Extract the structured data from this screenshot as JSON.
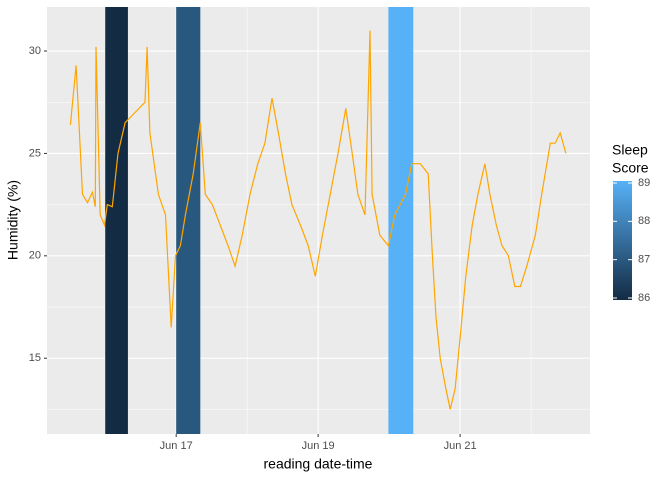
{
  "chart_data": {
    "type": "line",
    "x_label": "reading date-time",
    "y_label": "Humidity (%)",
    "xlim": [
      15.18,
      22.83
    ],
    "ylim": [
      11.3,
      32.15
    ],
    "xticks": [
      {
        "value": 17,
        "label": "Jun 17"
      },
      {
        "value": 19,
        "label": "Jun 19"
      },
      {
        "value": 21,
        "label": "Jun 21"
      }
    ],
    "x_minor_ticks": [
      16,
      18,
      20,
      22
    ],
    "yticks": [
      15,
      20,
      25,
      30
    ],
    "y_minor_ticks": [
      12.5,
      17.5,
      22.5,
      27.5
    ],
    "grid": true,
    "line": {
      "color": "#ffa500",
      "x": [
        15.51,
        15.59,
        15.68,
        15.75,
        15.82,
        15.86,
        15.87,
        15.93,
        15.99,
        16.03,
        16.1,
        16.18,
        16.28,
        16.42,
        16.56,
        16.59,
        16.63,
        16.75,
        16.85,
        16.93,
        16.99,
        17.06,
        17.13,
        17.24,
        17.34,
        17.41,
        17.51,
        17.62,
        17.73,
        17.83,
        17.93,
        18.04,
        18.15,
        18.25,
        18.35,
        18.44,
        18.54,
        18.63,
        18.75,
        18.86,
        18.96,
        19.06,
        19.17,
        19.28,
        19.39,
        19.48,
        19.56,
        19.66,
        19.73,
        19.76,
        19.87,
        19.99,
        20.08,
        20.23,
        20.32,
        20.44,
        20.55,
        20.61,
        20.66,
        20.72,
        20.8,
        20.86,
        20.93,
        21.0,
        21.08,
        21.17,
        21.25,
        21.35,
        21.42,
        21.51,
        21.59,
        21.68,
        21.77,
        21.85,
        21.94,
        22.06,
        22.15,
        22.27,
        22.34,
        22.41,
        22.49
      ],
      "values": [
        26.4,
        29.3,
        23.0,
        22.6,
        23.1,
        22.4,
        30.2,
        22.0,
        21.5,
        22.5,
        22.4,
        25.0,
        26.5,
        27.0,
        27.5,
        30.2,
        26.0,
        23.0,
        22.0,
        16.5,
        20.0,
        20.5,
        22.0,
        24.0,
        26.5,
        23.0,
        22.5,
        21.5,
        20.5,
        19.5,
        21.0,
        23.0,
        24.5,
        25.5,
        27.7,
        26.0,
        24.0,
        22.5,
        21.5,
        20.5,
        19.0,
        21.0,
        23.0,
        25.0,
        27.2,
        25.0,
        23.0,
        22.0,
        31.0,
        23.0,
        21.0,
        20.5,
        22.0,
        23.0,
        24.5,
        24.5,
        24.0,
        20.0,
        17.0,
        15.0,
        13.5,
        12.5,
        13.5,
        16.0,
        19.0,
        21.5,
        23.0,
        24.5,
        23.0,
        21.5,
        20.5,
        20.0,
        18.5,
        18.5,
        19.5,
        21.0,
        23.0,
        25.5,
        25.5,
        26.0,
        25.0
      ]
    },
    "sleep_periods": [
      {
        "start": 16.0,
        "end": 16.32,
        "value": 86
      },
      {
        "start": 17.0,
        "end": 17.34,
        "value": 87
      },
      {
        "start": 19.99,
        "end": 20.34,
        "value": 89
      }
    ],
    "legend_title": [
      "Sleep",
      "Score"
    ],
    "colorbar": {
      "low_color": "#132b43",
      "high_color": "#56b1f7",
      "lim": [
        86,
        89
      ],
      "ticks": [
        86,
        87,
        88,
        89
      ]
    }
  }
}
